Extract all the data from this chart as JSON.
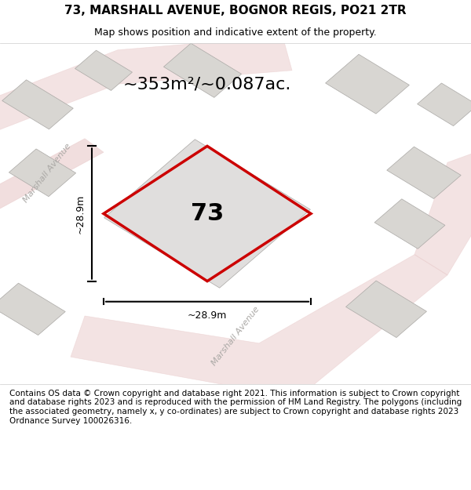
{
  "title": "73, MARSHALL AVENUE, BOGNOR REGIS, PO21 2TR",
  "subtitle": "Map shows position and indicative extent of the property.",
  "area_text": "~353m²/~0.087ac.",
  "property_number": "73",
  "dim_h": "~28.9m",
  "dim_v": "~28.9m",
  "footer": "Contains OS data © Crown copyright and database right 2021. This information is subject to Crown copyright and database rights 2023 and is reproduced with the permission of HM Land Registry. The polygons (including the associated geometry, namely x, y co-ordinates) are subject to Crown copyright and database rights 2023 Ordnance Survey 100026316.",
  "bg_color": "#f5f4f2",
  "map_bg": "#f0efed",
  "road_color": "#e8c8c8",
  "plot_color": "#cc0000",
  "building_color": "#d8d6d2",
  "street_label": "Marshall Avenue",
  "street_label2": "Marshall Avenue",
  "title_fontsize": 11,
  "subtitle_fontsize": 9,
  "footer_fontsize": 7.5
}
